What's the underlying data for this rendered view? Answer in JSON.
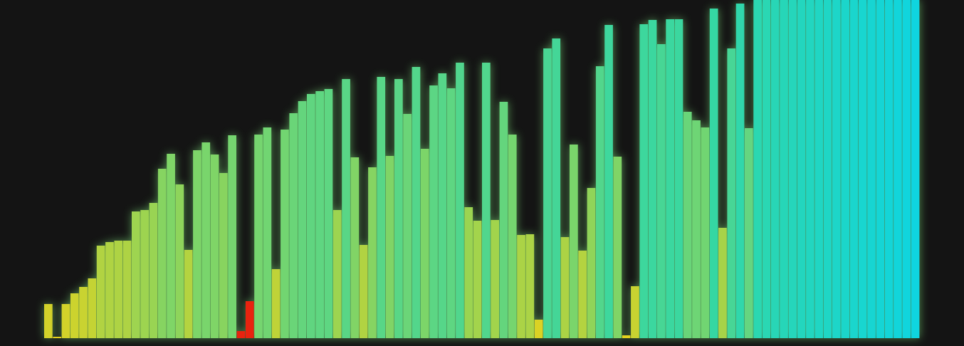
{
  "chart_data": {
    "type": "bar",
    "title": "",
    "xlabel": "",
    "ylabel": "",
    "ylim": [
      0,
      475
    ],
    "grid": false,
    "legend": "none",
    "colors": {
      "background": "#141414",
      "low": "#e6d21c",
      "mid": "#8fd45a",
      "high": "#31d7a7",
      "end": "#0fd5df",
      "highlight": "#e8230f",
      "glow": "#7ee17a"
    },
    "highlight_indices": [
      22,
      23
    ],
    "values": [
      48,
      2,
      48,
      63,
      72,
      84,
      130,
      135,
      137,
      137,
      178,
      180,
      190,
      238,
      259,
      216,
      124,
      264,
      275,
      258,
      232,
      285,
      10,
      52,
      286,
      296,
      97,
      293,
      316,
      333,
      343,
      347,
      350,
      180,
      364,
      254,
      131,
      240,
      367,
      256,
      364,
      315,
      381,
      266,
      355,
      372,
      351,
      387,
      184,
      165,
      387,
      166,
      332,
      286,
      145,
      146,
      26,
      407,
      421,
      142,
      272,
      123,
      211,
      382,
      440,
      255,
      4,
      73,
      441,
      447,
      413,
      448,
      448,
      318,
      306,
      296,
      463,
      155,
      407,
      470,
      295,
      475,
      475,
      475,
      475,
      475,
      475,
      475,
      475,
      475,
      475,
      475,
      475,
      475,
      475,
      475,
      475,
      475,
      475,
      475
    ]
  }
}
